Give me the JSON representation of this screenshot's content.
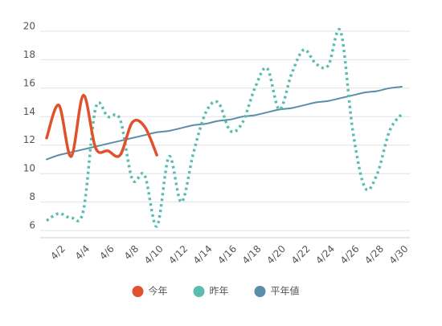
{
  "chart_data": {
    "type": "line",
    "categories": [
      null,
      "4/2",
      null,
      "4/4",
      null,
      "4/6",
      null,
      "4/8",
      null,
      "4/10",
      null,
      "4/12",
      null,
      "4/14",
      null,
      "4/16",
      null,
      "4/18",
      null,
      "4/20",
      null,
      "4/22",
      null,
      "4/24",
      null,
      "4/26",
      null,
      "4/28",
      null,
      "4/30"
    ],
    "series": [
      {
        "name": "今年",
        "color": "#e0522d",
        "dashed": false,
        "width": 3.5,
        "values": [
          12.5,
          14.8,
          11.2,
          15.5,
          11.8,
          11.6,
          11.3,
          13.6,
          13.3,
          11.3,
          null,
          null,
          null,
          null,
          null,
          null,
          null,
          null,
          null,
          null,
          null,
          null,
          null,
          null,
          null,
          null,
          null,
          null,
          null,
          null
        ]
      },
      {
        "name": "昨年",
        "color": "#5bbcb0",
        "dashed": true,
        "width": 3.5,
        "values": [
          6.7,
          7.2,
          6.9,
          7.4,
          14.6,
          14.0,
          13.8,
          9.6,
          9.9,
          6.3,
          11.2,
          8.0,
          11.5,
          14.3,
          15.0,
          13.0,
          13.6,
          16.0,
          17.4,
          14.5,
          17.0,
          18.7,
          17.7,
          17.6,
          20.0,
          13.0,
          9.0,
          10.0,
          13.0,
          14.2
        ]
      },
      {
        "name": "平年値",
        "color": "#5b8fa8",
        "dashed": false,
        "width": 2,
        "values": [
          11.0,
          11.3,
          11.5,
          11.7,
          11.9,
          12.1,
          12.3,
          12.5,
          12.7,
          12.9,
          13.0,
          13.2,
          13.4,
          13.5,
          13.7,
          13.8,
          14.0,
          14.1,
          14.3,
          14.5,
          14.6,
          14.8,
          15.0,
          15.1,
          15.3,
          15.5,
          15.7,
          15.8,
          16.0,
          16.1
        ]
      }
    ],
    "ylim": [
      5.5,
      20.5
    ],
    "yticks": [
      6,
      8,
      10,
      12,
      14,
      16,
      18,
      20
    ],
    "grid": true,
    "legend": "bottom"
  }
}
